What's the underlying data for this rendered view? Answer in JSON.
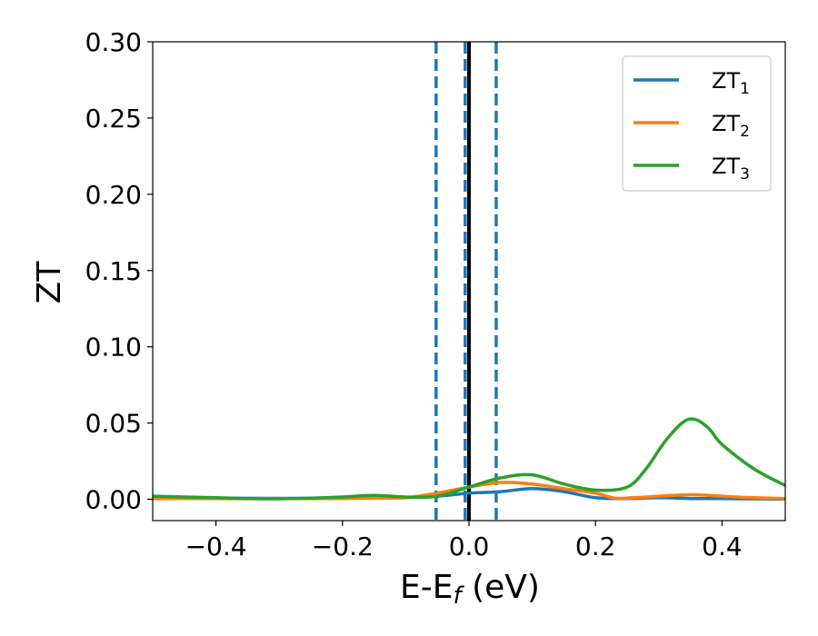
{
  "chart_data": {
    "type": "line",
    "xlabel": "E-E",
    "xlabel_sub": "f",
    "xlabel_unit": " (eV)",
    "ylabel": "ZT",
    "xlim": [
      -0.5,
      0.5
    ],
    "ylim": [
      -0.014,
      0.3
    ],
    "xticks": [
      -0.4,
      -0.2,
      0.0,
      0.2,
      0.4
    ],
    "xtick_labels": [
      "−0.4",
      "−0.2",
      "0.0",
      "0.2",
      "0.4"
    ],
    "yticks": [
      0.0,
      0.05,
      0.1,
      0.15,
      0.2,
      0.25,
      0.3
    ],
    "ytick_labels": [
      "0.00",
      "0.05",
      "0.10",
      "0.15",
      "0.20",
      "0.25",
      "0.30"
    ],
    "grid": false,
    "legend_position": "top-right",
    "vertical_lines": [
      {
        "x": -0.052,
        "style": "dashed",
        "color": "#1f77b4"
      },
      {
        "x": -0.006,
        "style": "dashed",
        "color": "#1f77b4"
      },
      {
        "x": 0.043,
        "style": "dashed",
        "color": "#1f77b4"
      },
      {
        "x": 0.0,
        "style": "solid",
        "color": "#000000"
      }
    ],
    "series": [
      {
        "name": "ZT",
        "sub": "1",
        "color": "#1f77b4",
        "x": [
          -0.5,
          -0.4,
          -0.3,
          -0.2,
          -0.15,
          -0.1,
          -0.05,
          0.0,
          0.05,
          0.1,
          0.15,
          0.2,
          0.25,
          0.3,
          0.35,
          0.4,
          0.45,
          0.5
        ],
        "y": [
          0.001,
          0.0008,
          0.0006,
          0.0008,
          0.001,
          0.0012,
          0.002,
          0.004,
          0.005,
          0.007,
          0.005,
          0.001,
          0.0005,
          0.001,
          0.0005,
          0.0004,
          0.0003,
          0.0002
        ]
      },
      {
        "name": "ZT",
        "sub": "2",
        "color": "#ff7f0e",
        "x": [
          -0.5,
          -0.4,
          -0.3,
          -0.2,
          -0.15,
          -0.1,
          -0.05,
          0.0,
          0.05,
          0.1,
          0.15,
          0.2,
          0.23,
          0.26,
          0.3,
          0.35,
          0.4,
          0.45,
          0.5
        ],
        "y": [
          0.0005,
          0.0004,
          0.0004,
          0.0005,
          0.0008,
          0.001,
          0.004,
          0.008,
          0.011,
          0.01,
          0.007,
          0.004,
          0.0008,
          0.001,
          0.002,
          0.003,
          0.002,
          0.001,
          0.0005
        ]
      },
      {
        "name": "ZT",
        "sub": "3",
        "color": "#2ca02c",
        "x": [
          -0.5,
          -0.45,
          -0.4,
          -0.35,
          -0.3,
          -0.25,
          -0.2,
          -0.15,
          -0.1,
          -0.05,
          0.0,
          0.05,
          0.1,
          0.15,
          0.2,
          0.25,
          0.28,
          0.31,
          0.34,
          0.36,
          0.38,
          0.4,
          0.45,
          0.5
        ],
        "y": [
          0.002,
          0.0015,
          0.001,
          0.0005,
          0.0003,
          0.0008,
          0.0015,
          0.0025,
          0.0015,
          0.002,
          0.008,
          0.014,
          0.016,
          0.01,
          0.006,
          0.008,
          0.02,
          0.038,
          0.051,
          0.052,
          0.046,
          0.036,
          0.02,
          0.009
        ]
      }
    ]
  }
}
